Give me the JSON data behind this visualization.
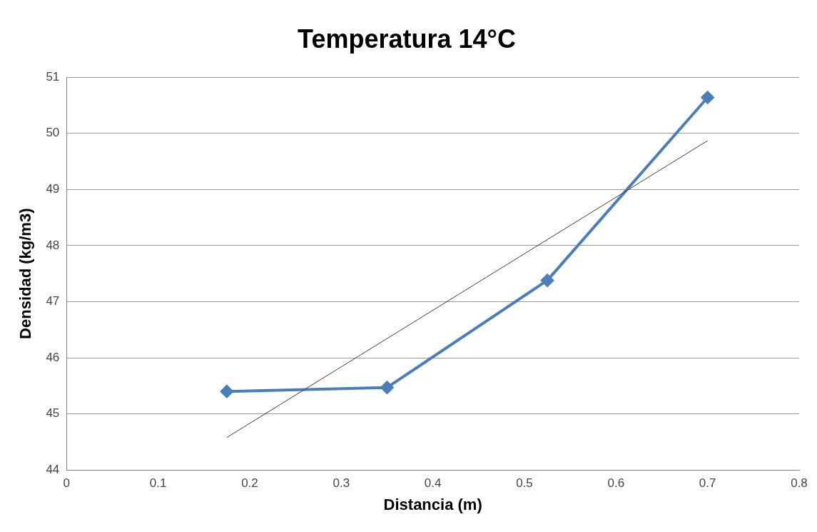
{
  "chart_data": {
    "type": "line",
    "title": "Temperatura 14°C",
    "xlabel": "Distancia (m)",
    "ylabel": "Densidad (kg/m3)",
    "xlim": [
      0,
      0.8
    ],
    "xticks": [
      0,
      0.1,
      0.2,
      0.3,
      0.4,
      0.5,
      0.6,
      0.7,
      0.8
    ],
    "ylim": [
      44,
      51
    ],
    "yticks": [
      44,
      45,
      46,
      47,
      48,
      49,
      50,
      51
    ],
    "grid": "y",
    "legend": false,
    "marker": "diamond",
    "line_style": "solid",
    "series": [
      {
        "type": "line",
        "color": "#4a7ebb",
        "x": [
          0.175,
          0.35,
          0.525,
          0.7
        ],
        "values": [
          45.4,
          45.47,
          47.38,
          50.64
        ]
      },
      {
        "type": "line",
        "color": "#404040",
        "marker": "none",
        "x": [
          0.175,
          0.7
        ],
        "values": [
          44.58,
          49.87
        ]
      }
    ]
  }
}
